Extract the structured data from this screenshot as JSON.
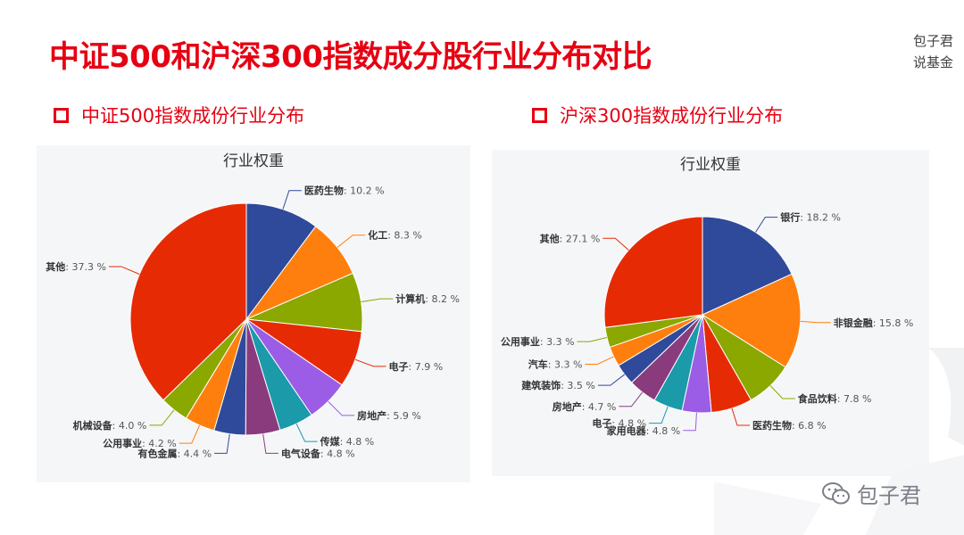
{
  "header": {
    "title": "中证500和沪深300指数成分股行业分布对比",
    "brand_line1": "包子君",
    "brand_line2": "说基金"
  },
  "subtitles": {
    "left": "中证500指数成份行业分布",
    "right": "沪深300指数成份行业分布"
  },
  "watermark": {
    "text": "包子君",
    "icon": "wechat-icon"
  },
  "chart_data": [
    {
      "type": "pie",
      "title": "行业权重",
      "value_suffix": " %",
      "slices": [
        {
          "name": "医药生物",
          "value": 10.2,
          "color": "#2f4a9a"
        },
        {
          "name": "化工",
          "value": 8.3,
          "color": "#ff7f0e"
        },
        {
          "name": "计算机",
          "value": 8.2,
          "color": "#8aa800"
        },
        {
          "name": "电子",
          "value": 7.9,
          "color": "#e62b04"
        },
        {
          "name": "房地产",
          "value": 5.9,
          "color": "#9b5de5"
        },
        {
          "name": "传媒",
          "value": 4.8,
          "color": "#1b9aaa"
        },
        {
          "name": "电气设备",
          "value": 4.8,
          "color": "#8a3b7e"
        },
        {
          "name": "有色金属",
          "value": 4.4,
          "color": "#2f4a9a"
        },
        {
          "name": "公用事业",
          "value": 4.2,
          "color": "#ff7f0e"
        },
        {
          "name": "机械设备",
          "value": 4.0,
          "color": "#8aa800"
        },
        {
          "name": "其他",
          "value": 37.3,
          "color": "#e62b04"
        }
      ]
    },
    {
      "type": "pie",
      "title": "行业权重",
      "value_suffix": " %",
      "slices": [
        {
          "name": "银行",
          "value": 18.2,
          "color": "#2f4a9a"
        },
        {
          "name": "非银金融",
          "value": 15.8,
          "color": "#ff7f0e"
        },
        {
          "name": "食品饮料",
          "value": 7.8,
          "color": "#8aa800"
        },
        {
          "name": "医药生物",
          "value": 6.8,
          "color": "#e62b04"
        },
        {
          "name": "家用电器",
          "value": 4.8,
          "color": "#9b5de5"
        },
        {
          "name": "电子",
          "value": 4.8,
          "color": "#1b9aaa"
        },
        {
          "name": "房地产",
          "value": 4.7,
          "color": "#8a3b7e"
        },
        {
          "name": "建筑装饰",
          "value": 3.5,
          "color": "#2f4a9a"
        },
        {
          "name": "汽车",
          "value": 3.3,
          "color": "#ff7f0e"
        },
        {
          "name": "公用事业",
          "value": 3.3,
          "color": "#8aa800"
        },
        {
          "name": "其他",
          "value": 27.1,
          "color": "#e62b04"
        }
      ]
    }
  ]
}
